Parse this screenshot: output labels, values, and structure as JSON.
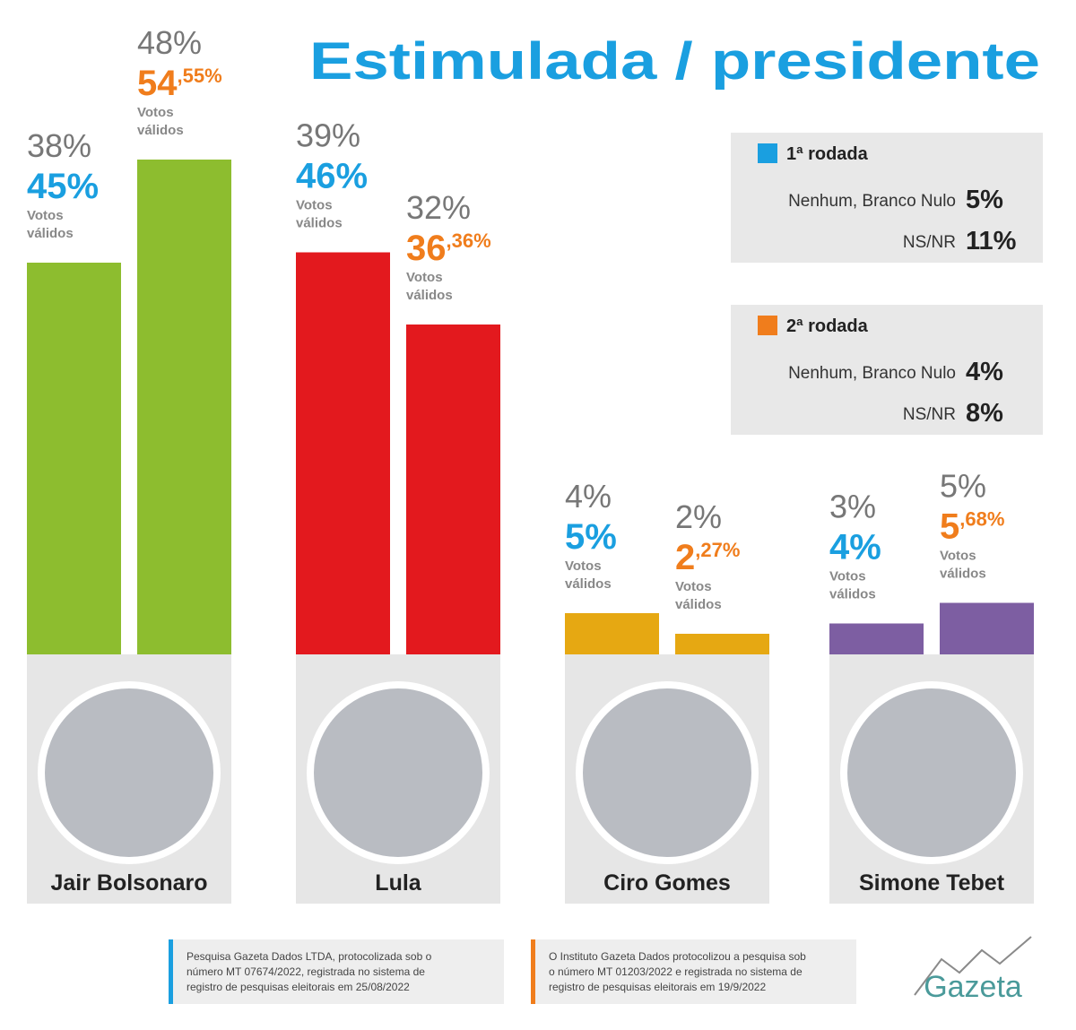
{
  "chart_data": {
    "type": "bar",
    "title": "Estimulada / presidente",
    "categories": [
      "Jair Bolsonaro",
      "Lula",
      "Ciro Gomes",
      "Simone Tebet"
    ],
    "bar_colors": [
      "#8dbd2f",
      "#e3191e",
      "#e6a812",
      "#7d5ea2"
    ],
    "valid_votes_note": "Votos válidos",
    "series": [
      {
        "name": "1ª rodada",
        "color": "#1a9fe0",
        "values": [
          38,
          39,
          4,
          3
        ],
        "value_labels": [
          "38%",
          "39%",
          "4%",
          "3%"
        ],
        "valid_votes": [
          45,
          46,
          5,
          4
        ],
        "valid_votes_labels": [
          "45%",
          "46%",
          "5%",
          "4%"
        ],
        "other_answers": [
          {
            "label": "Nenhum, Branco Nulo",
            "value": "5%"
          },
          {
            "label": "NS/NR",
            "value": "11%"
          }
        ]
      },
      {
        "name": "2ª rodada",
        "color": "#f07d1c",
        "values": [
          48,
          32,
          2,
          5
        ],
        "value_labels": [
          "48%",
          "32%",
          "2%",
          "5%"
        ],
        "valid_votes": [
          54.55,
          36.36,
          2.27,
          5.68
        ],
        "valid_votes_labels": [
          "54,55%",
          "36,36%",
          "2,27%",
          "5,68%"
        ],
        "other_answers": [
          {
            "label": "Nenhum, Branco Nulo",
            "value": "4%"
          },
          {
            "label": "NS/NR",
            "value": "8%"
          }
        ]
      }
    ]
  },
  "footnotes": [
    [
      "Pesquisa Gazeta Dados LTDA, protocolizada sob o",
      "número MT 07674/2022, registrada no sistema de",
      "registro de pesquisas eleitorais em 25/08/2022"
    ],
    [
      "O Instituto Gazeta Dados protocolizou a pesquisa sob",
      "o número MT 01203/2022 e registrada no sistema de",
      "registro de pesquisas eleitorais em 19/9/2022"
    ]
  ],
  "logo": "Gazeta"
}
